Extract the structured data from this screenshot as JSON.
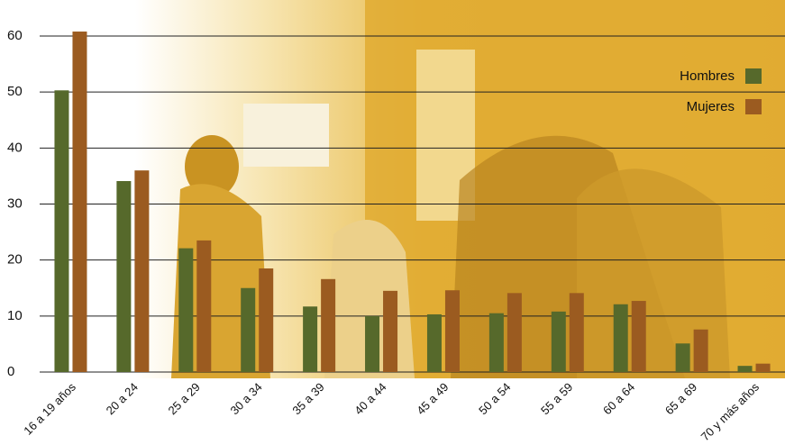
{
  "chart_data": {
    "type": "bar",
    "categories": [
      "16 a 19 años",
      "20 a 24",
      "25 a 29",
      "30 a 34",
      "35 a 39",
      "40 a 44",
      "45 a 49",
      "50 a 54",
      "55 a 59",
      "60 a 64",
      "65 a 69",
      "70 y más años"
    ],
    "series": [
      {
        "name": "Hombres",
        "color": "#56692b",
        "values": [
          50.3,
          34.1,
          22.1,
          15.0,
          11.7,
          10.0,
          10.3,
          10.5,
          10.8,
          12.1,
          5.1,
          1.1
        ]
      },
      {
        "name": "Mujeres",
        "color": "#9b5b20",
        "values": [
          60.8,
          36.0,
          23.5,
          18.5,
          16.6,
          14.5,
          14.6,
          14.1,
          14.1,
          12.7,
          7.6,
          1.5
        ]
      }
    ],
    "ylim": [
      0,
      60
    ],
    "yticks": [
      0,
      10,
      20,
      30,
      40,
      50,
      60
    ],
    "grid": true,
    "legend": "upper right"
  }
}
